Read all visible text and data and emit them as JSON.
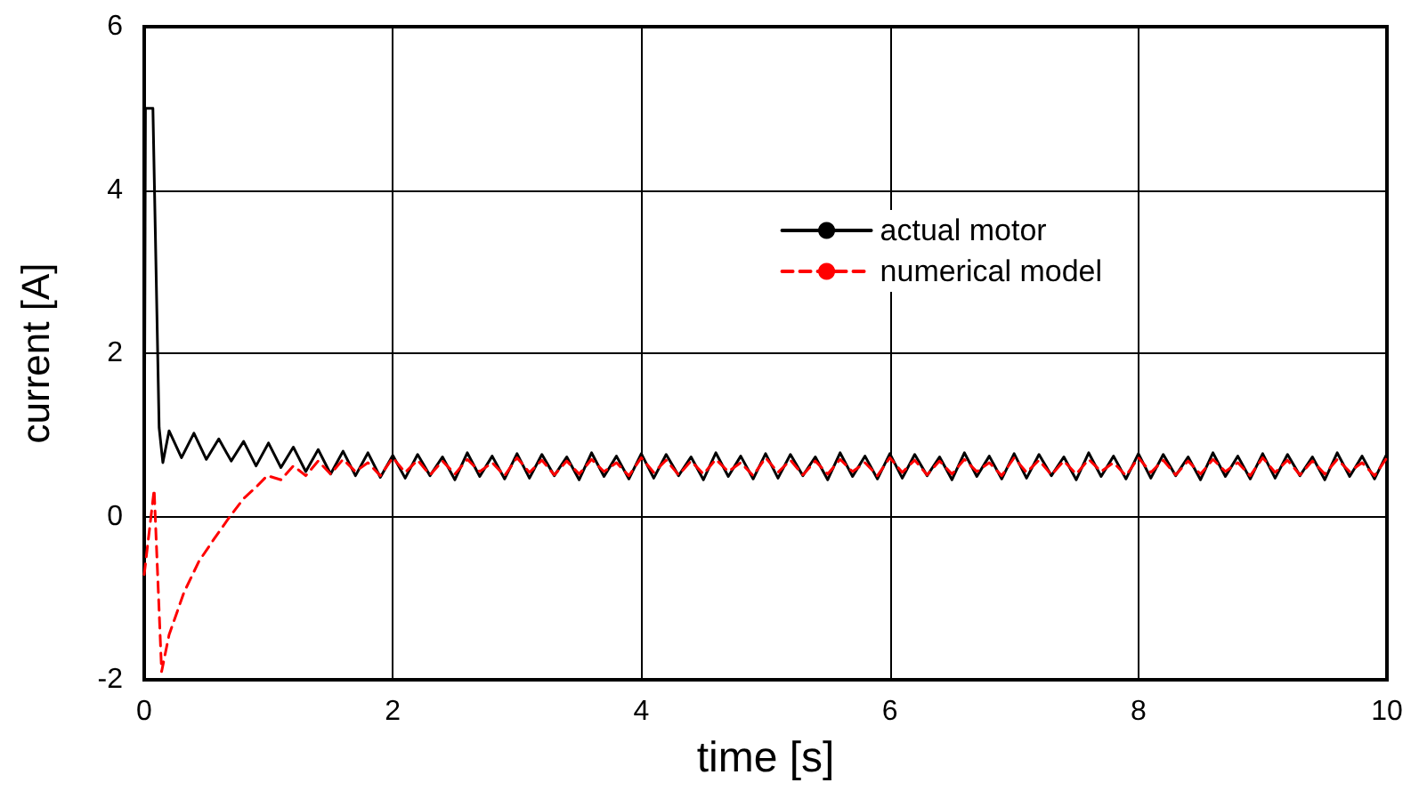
{
  "chart_data": {
    "type": "line",
    "xlabel": "time [s]",
    "ylabel": "current [A]",
    "xlim": [
      0,
      10
    ],
    "xticks": [
      0,
      2,
      4,
      6,
      8,
      10
    ],
    "ylim": [
      -2,
      6
    ],
    "yticks": [
      -2,
      0,
      2,
      4,
      6
    ],
    "grid": true,
    "legend": "top right",
    "marker": "none",
    "series": [
      {
        "name": "actual motor",
        "color": "#000000",
        "line_style": "solid",
        "x": [
          0,
          0.01,
          0.07,
          0.12,
          0.15,
          0.2,
          0.3,
          0.4,
          0.5,
          0.6,
          0.7,
          0.8,
          0.9,
          1.0,
          1.1,
          1.2,
          1.3,
          1.4,
          1.5,
          1.6,
          1.7,
          1.8,
          1.9,
          2.0,
          2.1,
          2.2,
          2.3,
          2.4,
          2.5,
          2.6,
          2.7,
          2.8,
          2.9,
          3.0,
          3.1,
          3.2,
          3.3,
          3.4,
          3.5,
          3.6,
          3.7,
          3.8,
          3.9,
          4.0,
          4.1,
          4.2,
          4.3,
          4.4,
          4.5,
          4.6,
          4.7,
          4.8,
          4.9,
          5.0,
          5.1,
          5.2,
          5.3,
          5.4,
          5.5,
          5.6,
          5.7,
          5.8,
          5.9,
          6.0,
          6.1,
          6.2,
          6.3,
          6.4,
          6.5,
          6.6,
          6.7,
          6.8,
          6.9,
          7.0,
          7.1,
          7.2,
          7.3,
          7.4,
          7.5,
          7.6,
          7.7,
          7.8,
          7.9,
          8.0,
          8.1,
          8.2,
          8.3,
          8.4,
          8.5,
          8.6,
          8.7,
          8.8,
          8.9,
          9.0,
          9.1,
          9.2,
          9.3,
          9.4,
          9.5,
          9.6,
          9.7,
          9.8,
          9.9,
          10.0
        ],
        "values": [
          0,
          5,
          5,
          1.09,
          0.66,
          1.05,
          0.72,
          1.02,
          0.7,
          0.95,
          0.68,
          0.92,
          0.62,
          0.9,
          0.6,
          0.85,
          0.55,
          0.82,
          0.52,
          0.8,
          0.5,
          0.78,
          0.48,
          0.75,
          0.47,
          0.76,
          0.5,
          0.73,
          0.45,
          0.78,
          0.49,
          0.74,
          0.46,
          0.77,
          0.47,
          0.76,
          0.5,
          0.73,
          0.45,
          0.78,
          0.49,
          0.74,
          0.46,
          0.77,
          0.47,
          0.76,
          0.5,
          0.73,
          0.45,
          0.78,
          0.49,
          0.74,
          0.46,
          0.77,
          0.47,
          0.76,
          0.5,
          0.73,
          0.45,
          0.78,
          0.49,
          0.74,
          0.46,
          0.77,
          0.47,
          0.76,
          0.5,
          0.73,
          0.45,
          0.78,
          0.49,
          0.74,
          0.46,
          0.77,
          0.47,
          0.76,
          0.5,
          0.73,
          0.45,
          0.78,
          0.49,
          0.74,
          0.46,
          0.77,
          0.47,
          0.76,
          0.5,
          0.73,
          0.45,
          0.78,
          0.49,
          0.74,
          0.46,
          0.77,
          0.47,
          0.76,
          0.5,
          0.73,
          0.45,
          0.78,
          0.49,
          0.74,
          0.46,
          0.77
        ]
      },
      {
        "name": "numerical model",
        "color": "#ff0000",
        "line_style": "dashed",
        "x": [
          0,
          0.08,
          0.14,
          0.2,
          0.32,
          0.44,
          0.56,
          0.68,
          0.8,
          0.9,
          0.99,
          1.1,
          1.2,
          1.3,
          1.4,
          1.5,
          1.6,
          1.7,
          1.8,
          1.9,
          2.0,
          2.1,
          2.2,
          2.3,
          2.4,
          2.5,
          2.6,
          2.7,
          2.8,
          2.9,
          3.0,
          3.1,
          3.2,
          3.3,
          3.4,
          3.5,
          3.6,
          3.7,
          3.8,
          3.9,
          4.0,
          4.1,
          4.2,
          4.3,
          4.4,
          4.5,
          4.6,
          4.7,
          4.8,
          4.9,
          5.0,
          5.1,
          5.2,
          5.3,
          5.4,
          5.5,
          5.6,
          5.7,
          5.8,
          5.9,
          6.0,
          6.1,
          6.2,
          6.3,
          6.4,
          6.5,
          6.6,
          6.7,
          6.8,
          6.9,
          7.0,
          7.1,
          7.2,
          7.3,
          7.4,
          7.5,
          7.6,
          7.7,
          7.8,
          7.9,
          8.0,
          8.1,
          8.2,
          8.3,
          8.4,
          8.5,
          8.6,
          8.7,
          8.8,
          8.9,
          9.0,
          9.1,
          9.2,
          9.3,
          9.4,
          9.5,
          9.6,
          9.7,
          9.8,
          9.9,
          10.0
        ],
        "values": [
          -0.71,
          0.33,
          -1.9,
          -1.45,
          -0.93,
          -0.55,
          -0.28,
          -0.02,
          0.22,
          0.36,
          0.5,
          0.45,
          0.62,
          0.5,
          0.68,
          0.52,
          0.7,
          0.55,
          0.66,
          0.5,
          0.72,
          0.54,
          0.69,
          0.51,
          0.68,
          0.52,
          0.7,
          0.55,
          0.66,
          0.5,
          0.72,
          0.54,
          0.69,
          0.51,
          0.68,
          0.52,
          0.7,
          0.55,
          0.66,
          0.5,
          0.72,
          0.54,
          0.69,
          0.51,
          0.68,
          0.52,
          0.7,
          0.55,
          0.66,
          0.5,
          0.72,
          0.54,
          0.69,
          0.51,
          0.68,
          0.52,
          0.7,
          0.55,
          0.66,
          0.5,
          0.72,
          0.54,
          0.69,
          0.51,
          0.68,
          0.52,
          0.7,
          0.55,
          0.66,
          0.5,
          0.72,
          0.54,
          0.69,
          0.51,
          0.68,
          0.52,
          0.7,
          0.55,
          0.66,
          0.5,
          0.72,
          0.54,
          0.69,
          0.51,
          0.68,
          0.52,
          0.7,
          0.55,
          0.66,
          0.5,
          0.72,
          0.54,
          0.69,
          0.51,
          0.68,
          0.52,
          0.7,
          0.55,
          0.66,
          0.5,
          0.72
        ]
      }
    ]
  }
}
